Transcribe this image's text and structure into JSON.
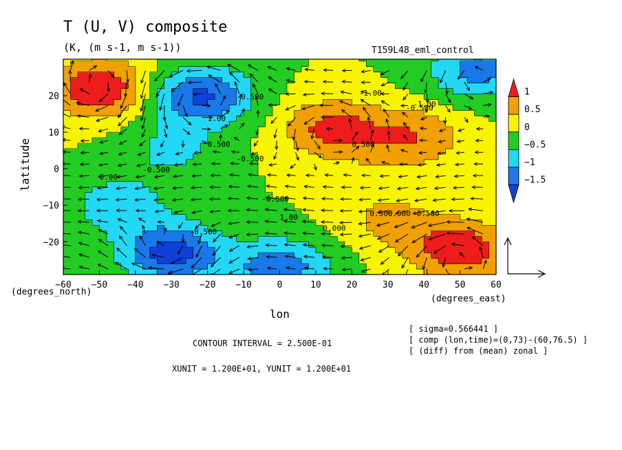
{
  "chart_data": {
    "type": "heatmap",
    "title": "T (U, V) composite",
    "subtitle": "(K, (m s-1, m s-1))",
    "experiment": "T159L48_eml_control",
    "xlabel": "lon",
    "ylabel": "latitude",
    "x_unit": "(degrees_east)",
    "y_unit": "(degrees_north)",
    "xlim": [
      -60,
      60
    ],
    "ylim": [
      -29,
      30
    ],
    "x_ticks": [
      -60,
      -50,
      -40,
      -30,
      -20,
      -10,
      0,
      10,
      20,
      30,
      40,
      50,
      60
    ],
    "y_ticks": [
      -20,
      -10,
      0,
      10,
      20
    ],
    "colorbar": {
      "labels": [
        "1",
        "0.5",
        "0",
        "-0.5",
        "-1",
        "-1.5"
      ],
      "levels": [
        1.0,
        0.5,
        0.0,
        -0.5,
        -1.0,
        -1.5
      ],
      "colors": [
        "#ee1c1c",
        "#f0a000",
        "#f8f400",
        "#22cc22",
        "#22d8f4",
        "#1a78e8",
        "#1040d8"
      ]
    },
    "anomalies": [
      {
        "lon": -50,
        "lat": 22,
        "value": 1.5
      },
      {
        "lon": -22,
        "lat": 20,
        "value": -1.6
      },
      {
        "lon": 15,
        "lat": 11,
        "value": 1.2
      },
      {
        "lon": 38,
        "lat": 9,
        "value": 0.9
      },
      {
        "lon": 50,
        "lat": -22,
        "value": 1.4
      },
      {
        "lon": -30,
        "lat": -23,
        "value": -1.7
      },
      {
        "lon": -45,
        "lat": -10,
        "value": -0.8
      },
      {
        "lon": 30,
        "lat": 0,
        "value": 0.2
      },
      {
        "lon": -30,
        "lat": 5,
        "value": -0.6
      },
      {
        "lon": 55,
        "lat": 27,
        "value": -1.2
      },
      {
        "lon": 0,
        "lat": -27,
        "value": -1.3
      },
      {
        "lon": 30,
        "lat": -14,
        "value": 0.6
      }
    ],
    "contour_labels": [
      "-1.00",
      "-0.500",
      "-0.500",
      "0.500",
      "0.500",
      "-0.500",
      "-0.500",
      "1.00",
      "1.00",
      "0.500",
      "0.000",
      "-1.00",
      "0.500",
      "0.500",
      "-0.500",
      "-0.500",
      "0.00"
    ],
    "contour_interval": "CONTOUR INTERVAL = 2.500E-01",
    "vector_units": "XUNIT = 1.200E+01, YUNIT = 1.200E+01",
    "notes": [
      "[ sigma=0.566441 ]",
      "[ comp (lon,time)=(0,73)-(60,76.5) ]",
      "[ (diff) from (mean) zonal ]"
    ]
  }
}
